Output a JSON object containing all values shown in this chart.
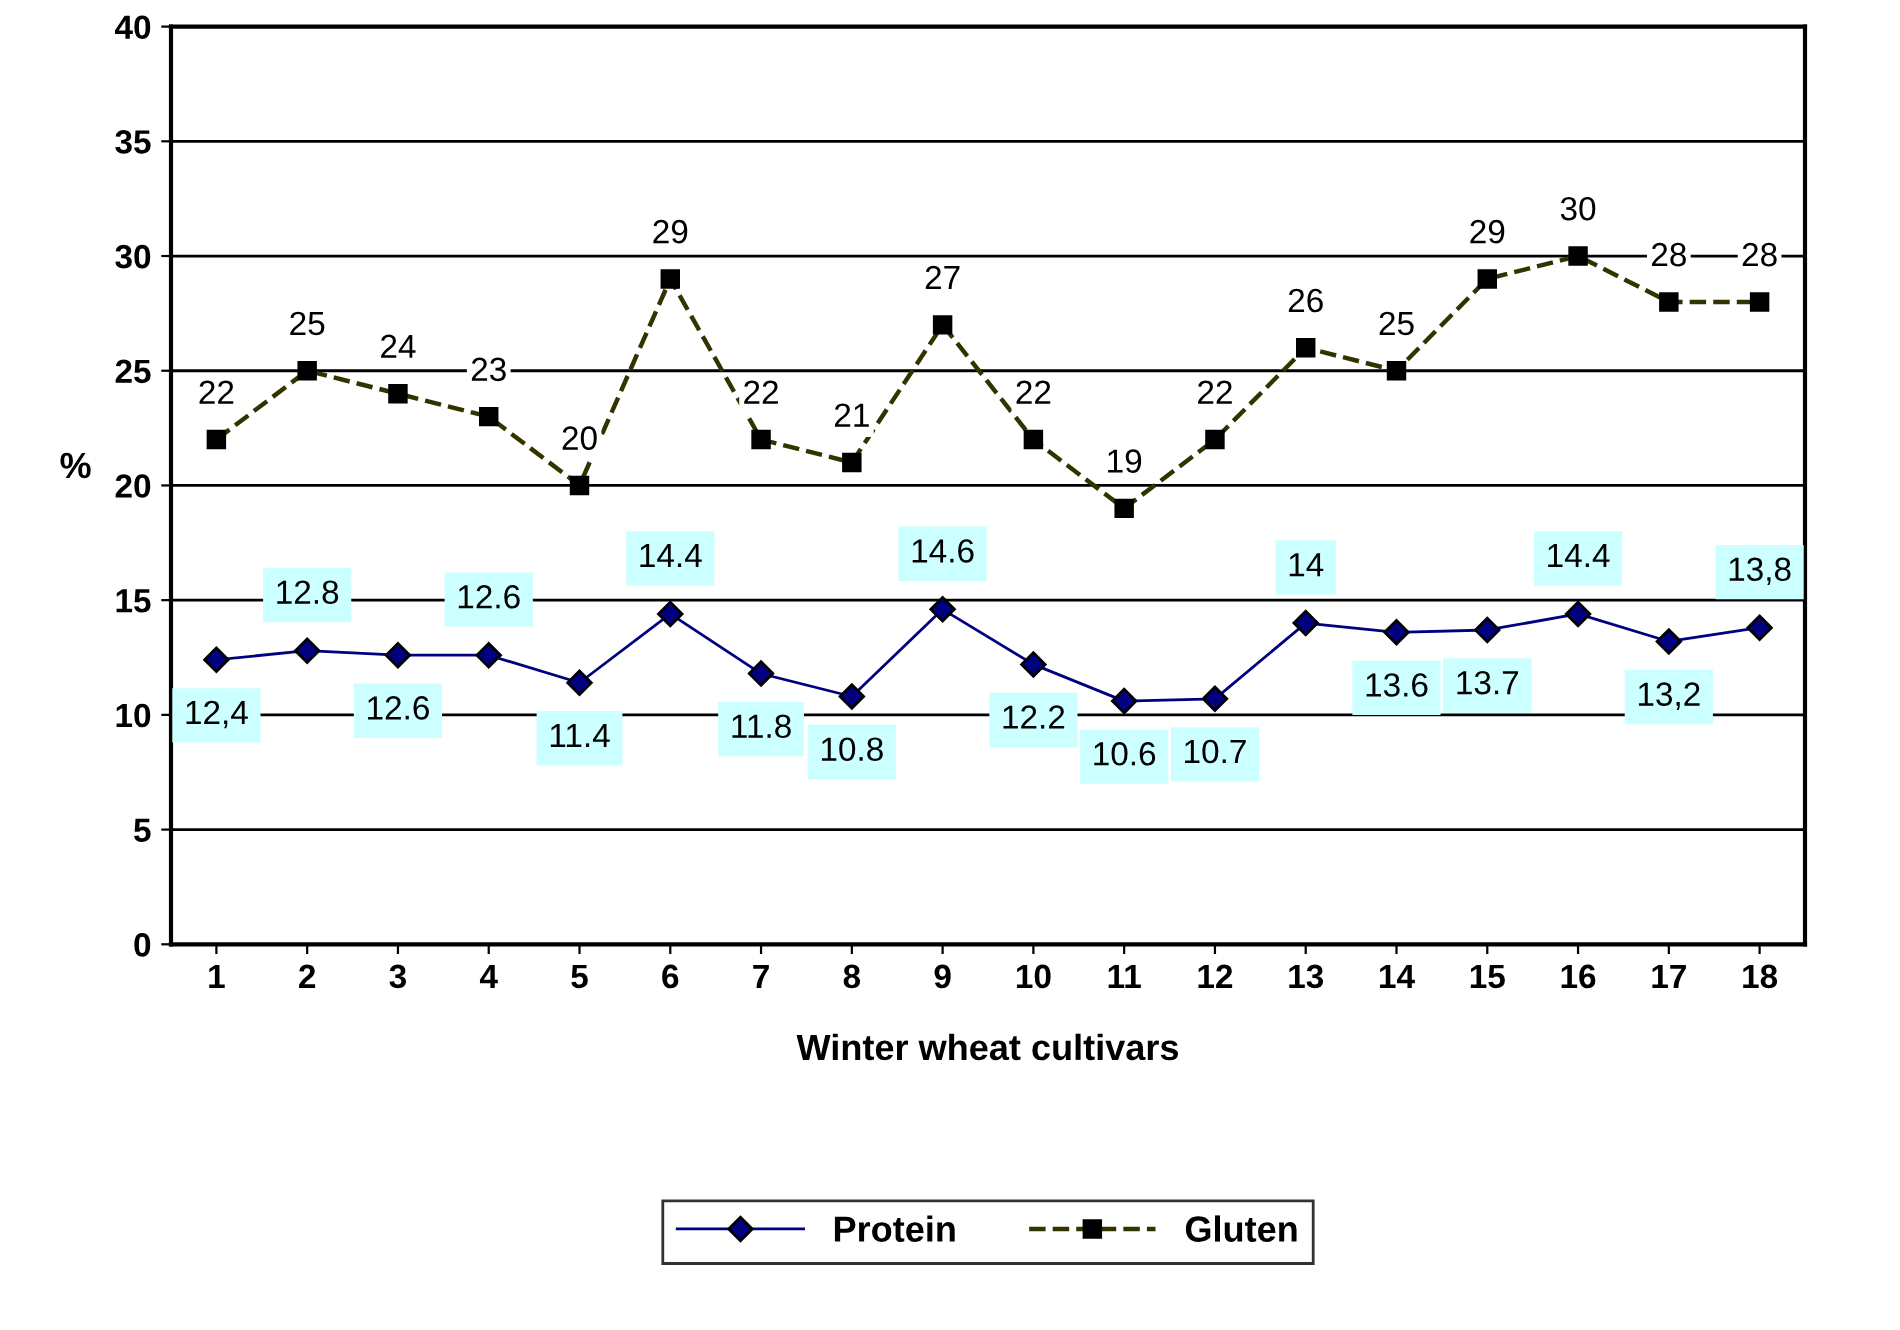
{
  "chart_data": {
    "type": "line",
    "xlabel": "Winter wheat cultivars",
    "ylabel": "%",
    "categories": [
      "1",
      "2",
      "3",
      "4",
      "5",
      "6",
      "7",
      "8",
      "9",
      "10",
      "11",
      "12",
      "13",
      "14",
      "15",
      "16",
      "17",
      "18"
    ],
    "ylim": [
      0,
      40
    ],
    "yticks": [
      0,
      5,
      10,
      15,
      20,
      25,
      30,
      35,
      40
    ],
    "grid": "y",
    "legend": "bottom",
    "series": [
      {
        "name": "Protein",
        "color": "#000080",
        "marker": "diamond",
        "line_style": "solid",
        "values": [
          12.4,
          12.8,
          12.6,
          12.6,
          11.4,
          14.4,
          11.8,
          10.8,
          14.6,
          12.2,
          10.6,
          10.7,
          14,
          13.6,
          13.7,
          14.4,
          13.2,
          13.8
        ],
        "value_labels": [
          "12,4",
          "12.8",
          "12.6",
          "12.6",
          "11.4",
          "14.4",
          "11.8",
          "10.8",
          "14.6",
          "12.2",
          "10.6",
          "10.7",
          "14",
          "13.6",
          "13.7",
          "14.4",
          "13,2",
          "13,8"
        ]
      },
      {
        "name": "Gluten",
        "color": "#333300",
        "marker": "square",
        "line_style": "dashed",
        "values": [
          22,
          25,
          24,
          23,
          20,
          29,
          22,
          21,
          27,
          22,
          19,
          22,
          26,
          25,
          29,
          30,
          28,
          28
        ],
        "value_labels": [
          "22",
          "25",
          "24",
          "23",
          "20",
          "29",
          "22",
          "21",
          "27",
          "22",
          "19",
          "22",
          "26",
          "25",
          "29",
          "30",
          "28",
          "28"
        ]
      }
    ]
  }
}
